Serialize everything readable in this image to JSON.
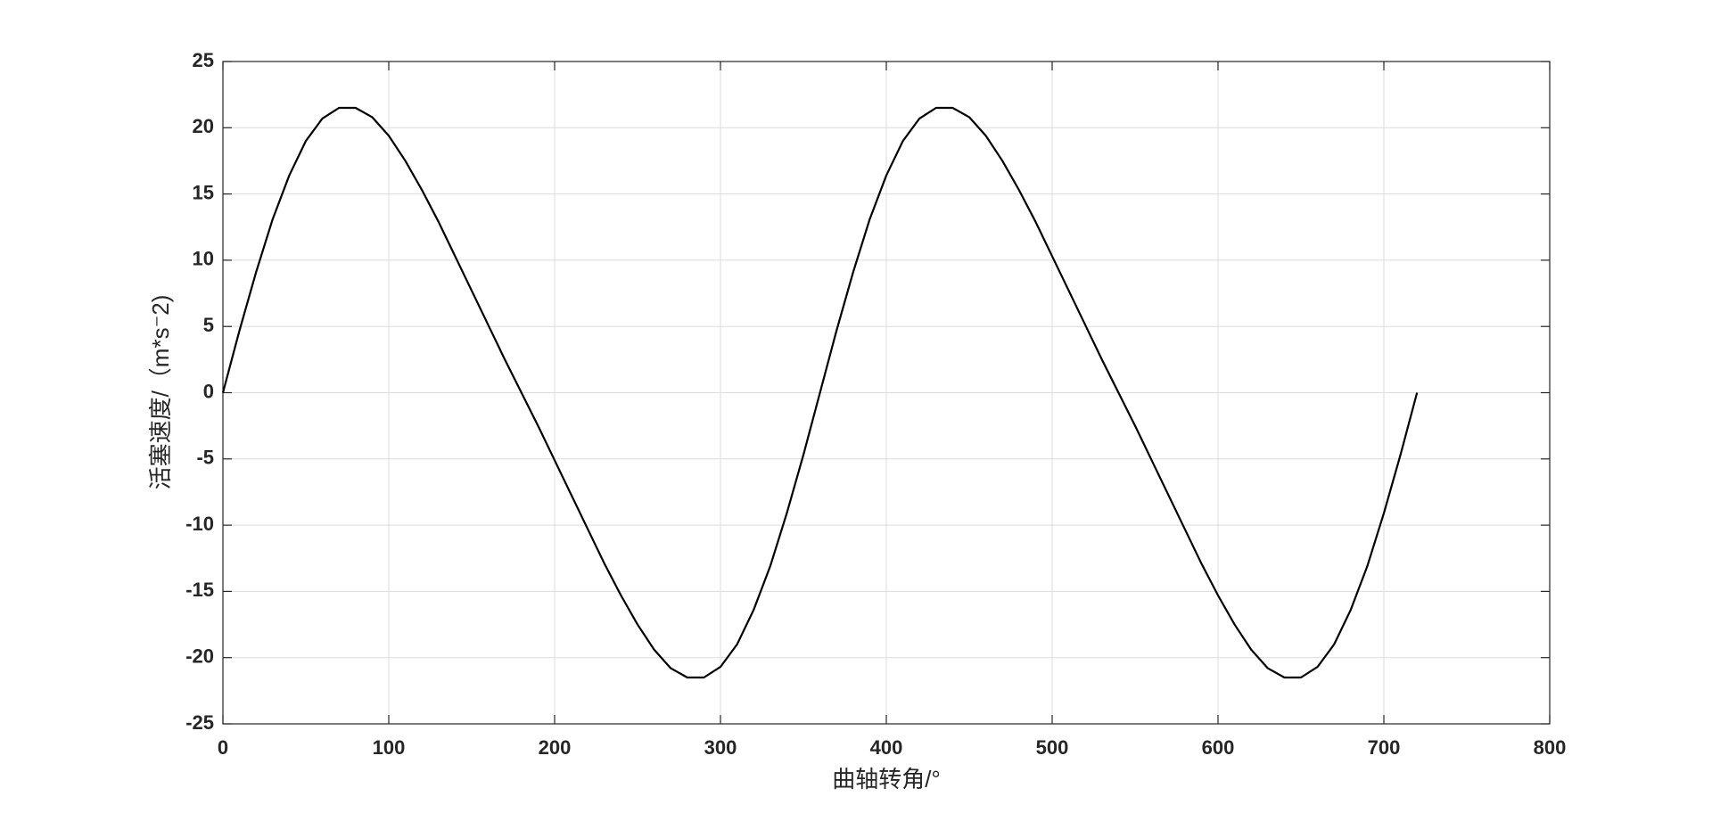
{
  "chart_data": {
    "type": "line",
    "xlabel": "曲轴转角/°",
    "ylabel": "活塞速度/（m*s⁻2)",
    "x": [
      0,
      10,
      20,
      30,
      40,
      50,
      60,
      70,
      80,
      90,
      100,
      110,
      120,
      130,
      140,
      150,
      160,
      170,
      180,
      190,
      200,
      210,
      220,
      230,
      240,
      250,
      260,
      270,
      280,
      290,
      300,
      310,
      320,
      330,
      340,
      350,
      360,
      370,
      380,
      390,
      400,
      410,
      420,
      430,
      440,
      450,
      460,
      470,
      480,
      490,
      500,
      510,
      520,
      530,
      540,
      550,
      560,
      570,
      580,
      590,
      600,
      610,
      620,
      630,
      640,
      650,
      660,
      670,
      680,
      690,
      700,
      710,
      720
    ],
    "values": [
      0,
      4.7,
      9.1,
      13.1,
      16.4,
      19.0,
      20.7,
      21.5,
      21.5,
      20.8,
      19.4,
      17.5,
      15.3,
      12.9,
      10.3,
      7.7,
      5.1,
      2.5,
      0,
      -2.5,
      -5.1,
      -7.7,
      -10.3,
      -12.9,
      -15.3,
      -17.5,
      -19.4,
      -20.8,
      -21.5,
      -21.5,
      -20.7,
      -19.0,
      -16.4,
      -13.1,
      -9.1,
      -4.7,
      0,
      4.7,
      9.1,
      13.1,
      16.4,
      19.0,
      20.7,
      21.5,
      21.5,
      20.8,
      19.4,
      17.5,
      15.3,
      12.9,
      10.3,
      7.7,
      5.1,
      2.5,
      0,
      -2.5,
      -5.1,
      -7.7,
      -10.3,
      -12.9,
      -15.3,
      -17.5,
      -19.4,
      -20.8,
      -21.5,
      -21.5,
      -20.7,
      -19.0,
      -16.4,
      -13.1,
      -9.1,
      -4.7,
      0
    ],
    "color": "#000000",
    "xlim": [
      0,
      800
    ],
    "xticks": [
      0,
      100,
      200,
      300,
      400,
      500,
      600,
      700,
      800
    ],
    "ylim": [
      -25,
      25
    ],
    "yticks": [
      -25,
      -20,
      -15,
      -10,
      -5,
      0,
      5,
      10,
      15,
      20,
      25
    ],
    "grid": true
  }
}
